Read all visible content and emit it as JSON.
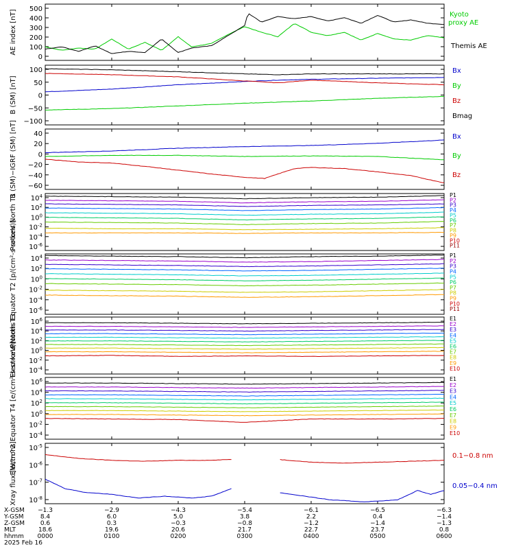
{
  "chart_data": [
    {
      "type": "line",
      "ylabel": "AE index [nT]",
      "yticks": [
        "500",
        "400",
        "300",
        "200",
        "100",
        "0"
      ],
      "ylim": [
        0,
        500
      ],
      "xlim": [
        0,
        6
      ],
      "series": [
        {
          "name": "Kyoto proxy AE",
          "color": "#00cc00",
          "x": [
            0,
            0.25,
            0.5,
            0.75,
            1.0,
            1.25,
            1.5,
            1.75,
            2.0,
            2.2,
            2.5,
            2.75,
            3.0,
            3.25,
            3.5,
            3.75,
            4.0,
            4.25,
            4.5,
            4.75,
            5.0,
            5.25,
            5.5,
            5.75,
            6.0
          ],
          "values": [
            120,
            90,
            110,
            100,
            190,
            100,
            160,
            90,
            210,
            120,
            150,
            230,
            300,
            250,
            210,
            330,
            250,
            220,
            250,
            180,
            240,
            190,
            180,
            220,
            200
          ]
        },
        {
          "name": "Themis AE",
          "color": "#000000",
          "x": [
            0,
            0.25,
            0.5,
            0.75,
            1.0,
            1.25,
            1.5,
            1.75,
            2.0,
            2.2,
            2.5,
            2.75,
            3.0,
            3.05,
            3.25,
            3.5,
            3.75,
            4.0,
            4.25,
            4.5,
            4.75,
            5.0,
            5.25,
            5.5,
            5.75,
            6.0
          ],
          "values": [
            100,
            120,
            80,
            130,
            60,
            80,
            70,
            190,
            70,
            110,
            130,
            220,
            310,
            420,
            340,
            390,
            370,
            390,
            350,
            380,
            330,
            400,
            340,
            360,
            330,
            320
          ]
        }
      ]
    },
    {
      "type": "line",
      "ylabel": "B (SM) [nT]",
      "yticks": [
        "100",
        "50",
        "0",
        "−50",
        "−100"
      ],
      "ylim": [
        -110,
        110
      ],
      "xlim": [
        0,
        6
      ],
      "series": [
        {
          "name": "Bx",
          "color": "#0000cc",
          "x": [
            0,
            1,
            2,
            3,
            3.5,
            4,
            5,
            6
          ],
          "values": [
            12,
            22,
            38,
            50,
            55,
            58,
            62,
            65
          ]
        },
        {
          "name": "By",
          "color": "#00cc00",
          "x": [
            0,
            1,
            2,
            3,
            4,
            5,
            6
          ],
          "values": [
            -55,
            -50,
            -40,
            -30,
            -22,
            -12,
            -5
          ]
        },
        {
          "name": "Bz",
          "color": "#cc0000",
          "x": [
            0,
            1,
            2,
            3,
            3.5,
            4,
            5,
            6
          ],
          "values": [
            80,
            75,
            67,
            52,
            45,
            55,
            45,
            38
          ]
        },
        {
          "name": "Bmag",
          "color": "#000000",
          "x": [
            0,
            1,
            2,
            3,
            3.5,
            4,
            5,
            6
          ],
          "values": [
            97,
            93,
            86,
            78,
            75,
            78,
            78,
            78
          ]
        }
      ]
    },
    {
      "type": "line",
      "ylabel": "B (SM)−IGRF (SM) [nT]",
      "yticks": [
        "40",
        "20",
        "0",
        "−20",
        "−40",
        "−60"
      ],
      "ylim": [
        -70,
        40
      ],
      "xlim": [
        0,
        6
      ],
      "series": [
        {
          "name": "Bx",
          "color": "#0000cc",
          "x": [
            0,
            1,
            2,
            3,
            4,
            5,
            6
          ],
          "values": [
            -3,
            0,
            5,
            8,
            10,
            14,
            20
          ]
        },
        {
          "name": "By",
          "color": "#00cc00",
          "x": [
            0,
            1,
            2,
            3,
            4,
            5,
            6
          ],
          "values": [
            -10,
            -8,
            -8,
            -10,
            -9,
            -10,
            -16
          ]
        },
        {
          "name": "Bz",
          "color": "#cc0000",
          "x": [
            0,
            0.5,
            1,
            1.5,
            2,
            2.5,
            3,
            3.3,
            3.5,
            3.75,
            4,
            4.5,
            5,
            5.5,
            6
          ],
          "values": [
            -15,
            -20,
            -22,
            -28,
            -35,
            -42,
            -48,
            -50,
            -42,
            -32,
            -30,
            -32,
            -38,
            -45,
            -58
          ]
        }
      ]
    },
    {
      "type": "line",
      "ylabel": "Protons North T1",
      "yticks": [
        "10^4",
        "10^2",
        "10^0",
        "10^-2",
        "10^-4",
        "10^-6"
      ],
      "ylim": [
        -7,
        4
      ],
      "xlim": [
        0,
        6
      ],
      "series": [
        {
          "name": "P1",
          "color": "#000000",
          "values": [
            3.5,
            3.4,
            3.3,
            3.0,
            3.2,
            3.3,
            3.6
          ]
        },
        {
          "name": "P2",
          "color": "#9900cc",
          "values": [
            2.7,
            2.6,
            2.5,
            2.2,
            2.4,
            2.5,
            2.8
          ]
        },
        {
          "name": "P3",
          "color": "#3300cc",
          "values": [
            2.0,
            1.9,
            1.8,
            1.5,
            1.7,
            1.8,
            2.0
          ]
        },
        {
          "name": "P4",
          "color": "#0066ff",
          "values": [
            1.2,
            1.1,
            1.0,
            0.7,
            0.9,
            1.0,
            1.3
          ]
        },
        {
          "name": "P5",
          "color": "#00cccc",
          "values": [
            0.3,
            0.2,
            0.1,
            -0.2,
            0.0,
            0.1,
            0.4
          ]
        },
        {
          "name": "P6",
          "color": "#00cc66",
          "values": [
            -0.6,
            -0.7,
            -0.8,
            -1.1,
            -0.9,
            -0.8,
            -0.5
          ]
        },
        {
          "name": "P7",
          "color": "#66cc00",
          "values": [
            -1.5,
            -1.6,
            -1.7,
            -2.0,
            -1.8,
            -1.7,
            -1.4
          ]
        },
        {
          "name": "P8",
          "color": "#cccc00",
          "values": [
            -2.7,
            -2.8,
            -2.8,
            -3.0,
            -2.9,
            -2.8,
            -2.6
          ]
        },
        {
          "name": "P9",
          "color": "#ff9900",
          "values": [
            -3.6,
            -3.6,
            -3.6,
            -3.7,
            -3.6,
            -3.6,
            -3.5
          ]
        },
        {
          "name": "P10",
          "color": "#cc0000",
          "values": []
        },
        {
          "name": "P11",
          "color": "#990000",
          "values": []
        }
      ]
    },
    {
      "type": "line",
      "ylabel": "Protons Equator T2 [p/(cm²-s-sr-keV)]",
      "yticks": [
        "10^4",
        "10^2",
        "10^0",
        "10^-2",
        "10^-4",
        "10^-6"
      ],
      "ylim": [
        -7,
        4
      ],
      "xlim": [
        0,
        6
      ],
      "series": [
        {
          "name": "P1",
          "color": "#000000",
          "values": [
            3.7,
            3.6,
            3.5,
            3.3,
            3.5,
            3.6,
            3.8
          ]
        },
        {
          "name": "P2",
          "color": "#9900cc",
          "values": [
            2.9,
            2.8,
            2.7,
            2.5,
            2.6,
            2.8,
            3.0
          ]
        },
        {
          "name": "P3",
          "color": "#3300cc",
          "values": [
            2.1,
            2.0,
            1.9,
            1.7,
            1.8,
            2.0,
            2.2
          ]
        },
        {
          "name": "P4",
          "color": "#0066ff",
          "values": [
            1.3,
            1.2,
            1.1,
            0.9,
            1.0,
            1.2,
            1.4
          ]
        },
        {
          "name": "P5",
          "color": "#00cccc",
          "values": [
            0.4,
            0.3,
            0.2,
            0.0,
            0.1,
            0.3,
            0.5
          ]
        },
        {
          "name": "P6",
          "color": "#00cc66",
          "values": [
            -0.5,
            -0.6,
            -0.7,
            -0.9,
            -0.8,
            -0.6,
            -0.4
          ]
        },
        {
          "name": "P7",
          "color": "#66cc00",
          "values": [
            -1.4,
            -1.5,
            -1.6,
            -1.8,
            -1.7,
            -1.5,
            -1.3
          ]
        },
        {
          "name": "P8",
          "color": "#cccc00",
          "values": [
            -2.6,
            -2.7,
            -2.8,
            -3.0,
            -2.9,
            -2.7,
            -2.5
          ]
        },
        {
          "name": "P9",
          "color": "#ff9900",
          "values": [
            -3.5,
            -3.6,
            -3.7,
            -3.9,
            -3.8,
            -3.6,
            -3.4
          ]
        },
        {
          "name": "P10",
          "color": "#cc0000",
          "values": []
        },
        {
          "name": "P11",
          "color": "#990000",
          "values": []
        }
      ]
    },
    {
      "type": "line",
      "ylabel": "Electrons North T3",
      "yticks": [
        "10^6",
        "10^4",
        "10^2",
        "10^0",
        "10^-2",
        "10^-4"
      ],
      "ylim": [
        -5,
        6
      ],
      "xlim": [
        0,
        6
      ],
      "series": [
        {
          "name": "E1",
          "color": "#000000",
          "values": [
            4.9,
            4.9,
            4.8,
            4.7,
            4.8,
            4.9,
            5.0
          ]
        },
        {
          "name": "E2",
          "color": "#9900cc",
          "values": [
            4.2,
            4.2,
            4.1,
            4.0,
            4.1,
            4.2,
            4.3
          ]
        },
        {
          "name": "E3",
          "color": "#3300cc",
          "values": [
            3.5,
            3.5,
            3.4,
            3.3,
            3.4,
            3.5,
            3.6
          ]
        },
        {
          "name": "E4",
          "color": "#0066ff",
          "values": [
            2.8,
            2.8,
            2.7,
            2.6,
            2.7,
            2.8,
            2.9
          ]
        },
        {
          "name": "E5",
          "color": "#00cccc",
          "values": [
            2.1,
            2.1,
            2.0,
            1.9,
            2.0,
            2.1,
            2.2
          ]
        },
        {
          "name": "E6",
          "color": "#00cc66",
          "values": [
            1.4,
            1.4,
            1.3,
            1.2,
            1.3,
            1.4,
            1.5
          ]
        },
        {
          "name": "E7",
          "color": "#66cc00",
          "values": [
            0.7,
            0.7,
            0.6,
            0.5,
            0.6,
            0.7,
            0.8
          ]
        },
        {
          "name": "E8",
          "color": "#cccc00",
          "values": [
            0.0,
            0.0,
            -0.1,
            -0.2,
            -0.1,
            0.0,
            0.1
          ]
        },
        {
          "name": "E9",
          "color": "#ff9900",
          "values": [
            -0.7,
            -0.7,
            -0.8,
            -0.9,
            -0.8,
            -0.7,
            -0.6
          ]
        },
        {
          "name": "E10",
          "color": "#cc0000",
          "values": [
            -1.5,
            -1.4,
            -1.6,
            -1.5,
            -1.6,
            -1.5,
            -1.4
          ]
        }
      ]
    },
    {
      "type": "line",
      "ylabel": "Electrons Equator T4 [e/(cm²-s-sr-keV)]",
      "yticks": [
        "10^6",
        "10^4",
        "10^2",
        "10^0",
        "10^-2",
        "10^-4"
      ],
      "ylim": [
        -5,
        6
      ],
      "xlim": [
        0,
        6
      ],
      "series": [
        {
          "name": "E1",
          "color": "#000000",
          "values": [
            5.0,
            5.0,
            4.9,
            4.8,
            4.9,
            5.0,
            5.1
          ]
        },
        {
          "name": "E2",
          "color": "#9900cc",
          "values": [
            4.3,
            4.3,
            4.2,
            4.1,
            4.2,
            4.3,
            4.4
          ]
        },
        {
          "name": "E3",
          "color": "#3300cc",
          "values": [
            3.6,
            3.6,
            3.5,
            3.4,
            3.5,
            3.6,
            3.7
          ]
        },
        {
          "name": "E4",
          "color": "#0066ff",
          "values": [
            2.9,
            2.9,
            2.8,
            2.7,
            2.8,
            2.9,
            3.0
          ]
        },
        {
          "name": "E5",
          "color": "#00cccc",
          "values": [
            2.2,
            2.2,
            2.1,
            2.0,
            2.1,
            2.2,
            2.3
          ]
        },
        {
          "name": "E6",
          "color": "#00cc66",
          "values": [
            1.5,
            1.5,
            1.4,
            1.3,
            1.4,
            1.5,
            1.6
          ]
        },
        {
          "name": "E7",
          "color": "#66cc00",
          "values": [
            0.8,
            0.8,
            0.7,
            0.6,
            0.7,
            0.8,
            0.9
          ]
        },
        {
          "name": "E8",
          "color": "#cccc00",
          "values": [
            0.1,
            0.1,
            0.0,
            -0.1,
            0.0,
            0.1,
            0.2
          ]
        },
        {
          "name": "E9",
          "color": "#ff9900",
          "values": [
            -0.6,
            -0.6,
            -0.7,
            -0.8,
            -0.7,
            -0.6,
            -0.5
          ]
        },
        {
          "name": "E10",
          "color": "#cc0000",
          "values": [
            -1.3,
            -1.4,
            -1.5,
            -2.0,
            -1.4,
            -1.4,
            -1.3
          ]
        }
      ]
    },
    {
      "type": "line",
      "ylabel": "Xray flux [W/m^2]",
      "yticks": [
        "10^-5",
        "10^-6",
        "10^-7",
        "10^-8"
      ],
      "ylim": [
        -8.2,
        -5
      ],
      "xlim": [
        0,
        6
      ],
      "series": [
        {
          "name": "0.1−0.8 nm",
          "color": "#cc0000",
          "x": [
            0,
            0.5,
            1,
            1.5,
            2,
            2.5,
            2.8,
            3.3,
            3.5,
            4,
            4.5,
            5,
            5.5,
            6
          ],
          "values": [
            -5.6,
            -5.8,
            -5.9,
            -5.95,
            -5.9,
            -5.9,
            -5.85,
            null,
            -5.85,
            -6.0,
            -6.05,
            -6.0,
            -5.95,
            -5.9
          ]
        },
        {
          "name": "0.05−0.4 nm",
          "color": "#0000cc",
          "x": [
            0,
            0.3,
            0.6,
            1.0,
            1.4,
            1.8,
            2.2,
            2.5,
            2.8,
            3.3,
            3.5,
            3.9,
            4.3,
            4.8,
            5.3,
            5.6,
            5.8,
            6
          ],
          "values": [
            -6.9,
            -7.4,
            -7.6,
            -7.7,
            -7.9,
            -7.8,
            -7.9,
            -7.8,
            -7.4,
            null,
            -7.6,
            -7.8,
            -8.0,
            -8.1,
            -8.0,
            -7.5,
            -7.7,
            -7.5
          ]
        }
      ]
    }
  ],
  "footer": {
    "rows": [
      {
        "label": "X-GSM",
        "values": [
          "−1.3",
          "−2.9",
          "−4.3",
          "−5.4",
          "−6.1",
          "−6.5",
          "−6.3"
        ]
      },
      {
        "label": "Y-GSM",
        "values": [
          "8.4",
          "6.0",
          "5.0",
          "3.8",
          "2.2",
          "0.4",
          "−1.4"
        ]
      },
      {
        "label": "Z-GSM",
        "values": [
          "0.6",
          "0.3",
          "−0.3",
          "−0.8",
          "−1.2",
          "−1.4",
          "−1.3"
        ]
      },
      {
        "label": "MLT",
        "values": [
          "18.6",
          "19.6",
          "20.6",
          "21.7",
          "22.7",
          "23.7",
          "0.8"
        ]
      },
      {
        "label": "hhmm",
        "values": [
          "0000",
          "0100",
          "0200",
          "0300",
          "0400",
          "0500",
          "0600"
        ]
      }
    ],
    "date": "2025 Feb 16"
  },
  "legend_labels": {
    "ae": [
      "Kyoto",
      "proxy AE",
      "Themis AE"
    ],
    "b": [
      "Bx",
      "By",
      "Bz",
      "Bmag"
    ],
    "db": [
      "Bx",
      "By",
      "Bz"
    ],
    "xray": [
      "0.1−0.8 nm",
      "0.05−0.4 nm"
    ]
  },
  "colors": {
    "axis": "#000000",
    "red": "#cc0000",
    "green": "#00cc00",
    "blue": "#0000cc"
  }
}
